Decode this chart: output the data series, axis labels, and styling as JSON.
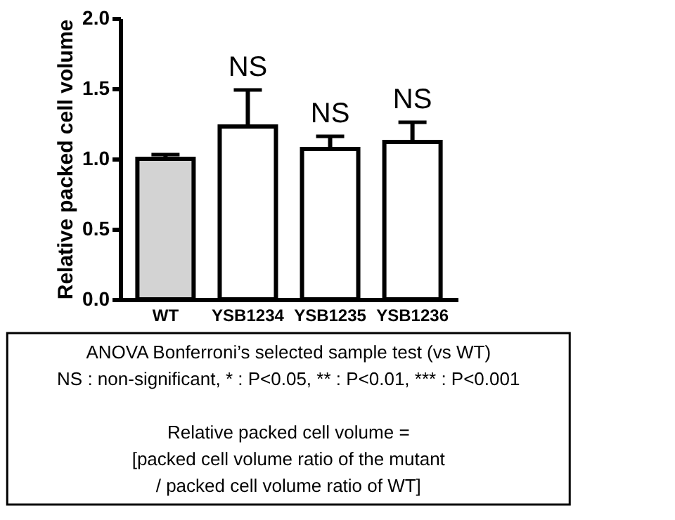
{
  "chart_data": {
    "type": "bar",
    "ylabel": "Relative packed cell volume",
    "categories": [
      "WT",
      "YSB1234",
      "YSB1235",
      "YSB1236"
    ],
    "values": [
      1.0,
      1.23,
      1.07,
      1.12
    ],
    "colors": [
      "#d3d3d3",
      "#ffffff",
      "#ffffff",
      "#ffffff"
    ],
    "errors": [
      [
        1.0,
        1.03
      ],
      [
        1.23,
        1.49
      ],
      [
        1.07,
        1.16
      ],
      [
        1.12,
        1.26
      ]
    ],
    "ylim": [
      0,
      2
    ],
    "yticks": [
      {
        "value": 0,
        "label": "0.0"
      },
      0.5,
      {
        "value": 1,
        "label": "1.0"
      },
      1.5,
      {
        "value": 2,
        "label": "2.0"
      }
    ],
    "grid": false,
    "annotations": [
      {
        "text": "NS",
        "x": "YSB1234",
        "y": 1.49
      },
      {
        "text": "NS",
        "x": "YSB1235",
        "y": 1.16
      },
      {
        "text": "NS",
        "x": "YSB1236",
        "y": 1.26
      },
      "ANOVA Bonferroni’s selected sample test (vs WT)\nNS : non-significant, * : P<0.05, ** : P<0.01, *** : P<0.001",
      "Relative packed cell volume =\n[packed cell volume ratio of the mutant\n/ packed cell volume ratio of WT]"
    ]
  }
}
